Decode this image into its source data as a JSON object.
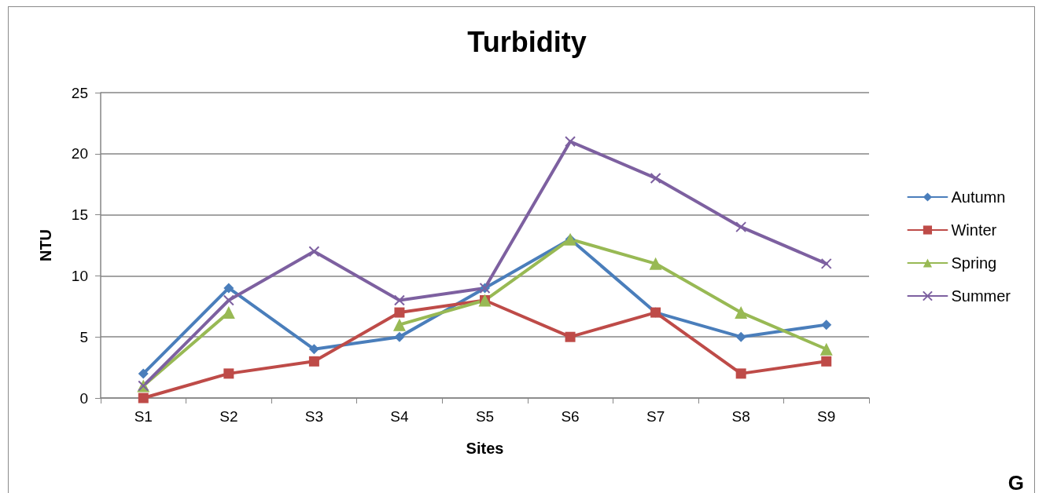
{
  "chart_data": {
    "type": "line",
    "title": "Turbidity",
    "xlabel": "Sites",
    "ylabel": "NTU",
    "categories": [
      "S1",
      "S2",
      "S3",
      "S4",
      "S5",
      "S6",
      "S7",
      "S8",
      "S9"
    ],
    "series": [
      {
        "name": "Autumn",
        "color": "#4a7ebb",
        "marker": "diamond",
        "values": [
          2,
          9,
          4,
          5,
          9,
          13,
          7,
          5,
          6
        ]
      },
      {
        "name": "Winter",
        "color": "#be4b48",
        "marker": "square",
        "values": [
          0,
          2,
          3,
          7,
          8,
          5,
          7,
          2,
          3
        ]
      },
      {
        "name": "Spring",
        "color": "#98b954",
        "marker": "triangle",
        "values": [
          1,
          7,
          null,
          6,
          8,
          13,
          11,
          7,
          4
        ]
      },
      {
        "name": "Summer",
        "color": "#7d60a0",
        "marker": "cross",
        "values": [
          1,
          8,
          12,
          8,
          9,
          21,
          18,
          14,
          11
        ]
      }
    ],
    "ylim": [
      0,
      25
    ],
    "yticks": [
      0,
      5,
      10,
      15,
      20,
      25
    ],
    "grid": "y",
    "legend": "right",
    "line_style": "solid",
    "annotations": [
      "G"
    ]
  }
}
